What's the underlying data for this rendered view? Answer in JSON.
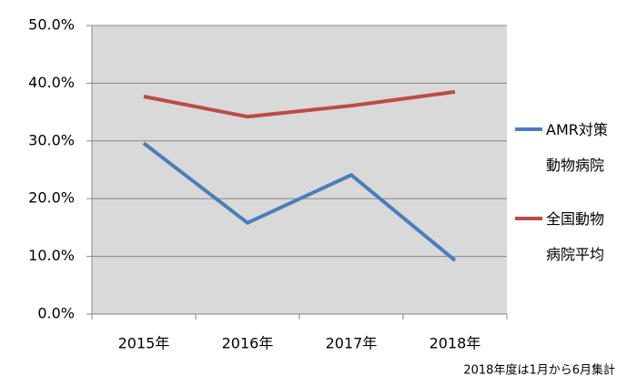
{
  "chart_data": {
    "type": "line",
    "categories": [
      "2015年",
      "2016年",
      "2017年",
      "2018年"
    ],
    "series": [
      {
        "name": "AMR対策動物病院",
        "color": "#4a7ebb",
        "values": [
          29.6,
          15.8,
          24.1,
          9.3
        ]
      },
      {
        "name": "全国動物病院平均",
        "color": "#be4b48",
        "values": [
          37.7,
          34.2,
          36.1,
          38.5
        ]
      }
    ],
    "ylim": [
      0,
      50
    ],
    "yticks": [
      {
        "value": 0,
        "label": "0.0%"
      },
      {
        "value": 10,
        "label": "10.0%"
      },
      {
        "value": 20,
        "label": "20.0%"
      },
      {
        "value": 30,
        "label": "30.0%"
      },
      {
        "value": 40,
        "label": "40.0%"
      },
      {
        "value": 50,
        "label": "50.0%"
      }
    ],
    "grid": true,
    "legend": "right",
    "annotation": "2018年度は1月から6月集計"
  }
}
